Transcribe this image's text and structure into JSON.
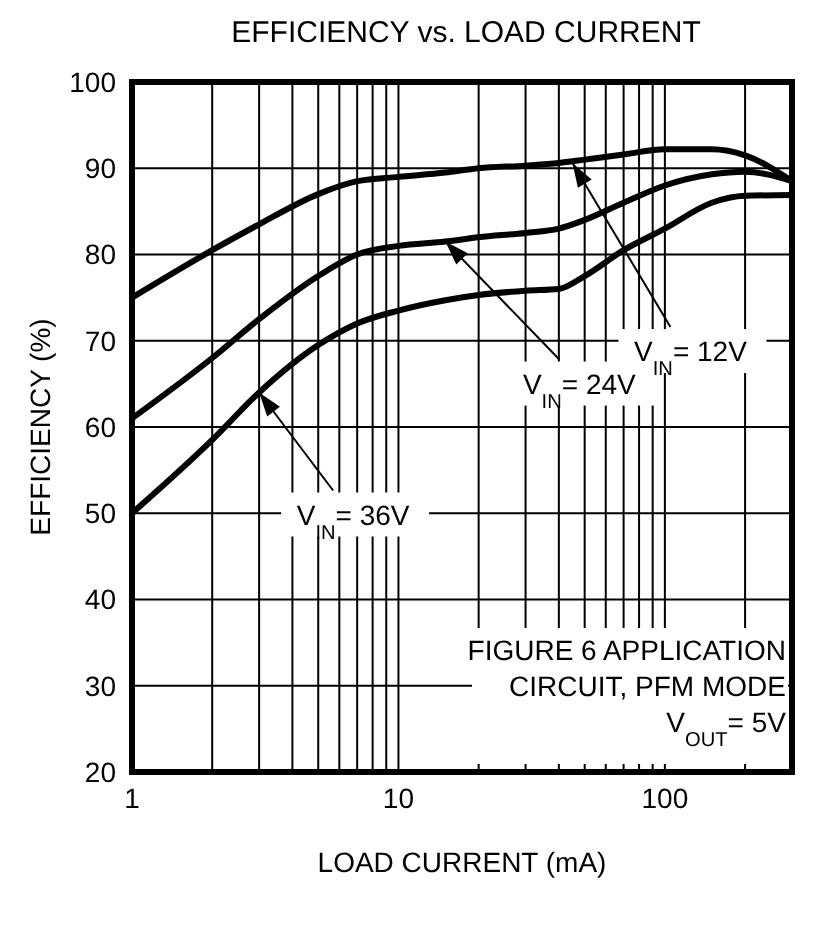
{
  "chart_data": {
    "type": "line",
    "title": "EFFICIENCY vs. LOAD CURRENT",
    "xlabel": "LOAD CURRENT (mA)",
    "ylabel": "EFFICIENCY (%)",
    "x": [
      1,
      2,
      3,
      5,
      7,
      10,
      15,
      20,
      30,
      40,
      50,
      70,
      100,
      150,
      200,
      300
    ],
    "series": [
      {
        "color": "#000000",
        "values": [
          75,
          80.5,
          83.5,
          87,
          88.5,
          89,
          89.5,
          90,
          90.3,
          90.6,
          91,
          91.6,
          92.2,
          92.2,
          91.5,
          88.5
        ]
      },
      {
        "color": "#000000",
        "values": [
          61,
          68,
          72.5,
          77.5,
          80,
          81,
          81.5,
          82,
          82.5,
          83,
          84,
          86,
          88,
          89.3,
          89.6,
          88.5
        ]
      },
      {
        "color": "#000000",
        "values": [
          50,
          58.5,
          64,
          69.5,
          72,
          73.5,
          74.7,
          75.3,
          75.8,
          76,
          77.5,
          80.5,
          83,
          86,
          86.8,
          86.9
        ]
      }
    ],
    "log": "x",
    "xlim": [
      1,
      300
    ],
    "xticks": [
      1,
      {
        "value": 2,
        "label": null
      },
      {
        "value": 3,
        "label": null
      },
      {
        "value": 4,
        "label": null
      },
      {
        "value": 5,
        "label": null
      },
      {
        "value": 6,
        "label": null
      },
      {
        "value": 7,
        "label": null
      },
      {
        "value": 8,
        "label": null
      },
      {
        "value": 9,
        "label": null
      },
      10,
      {
        "value": 20,
        "label": null
      },
      {
        "value": 30,
        "label": null
      },
      {
        "value": 40,
        "label": null
      },
      {
        "value": 50,
        "label": null
      },
      {
        "value": 60,
        "label": null
      },
      {
        "value": 70,
        "label": null
      },
      {
        "value": 80,
        "label": null
      },
      {
        "value": 90,
        "label": null
      },
      100,
      {
        "value": 200,
        "label": null
      }
    ],
    "ylim": [
      20,
      100
    ],
    "yticks": [
      20,
      30,
      40,
      50,
      60,
      70,
      80,
      90,
      100
    ],
    "grid": true,
    "legend": false,
    "marker": "none",
    "line_style": "solid",
    "annotations": [
      {
        "text": "V$_{IN}$= 36V",
        "x": 3,
        "y": 64
      },
      {
        "text": "V$_{IN}$= 24V",
        "x": 15,
        "y": 81.5
      },
      {
        "text": "V$_{IN}$= 12V",
        "x": 45,
        "y": 90.6
      },
      "FIGURE 6 APPLICATION",
      "CIRCUIT, PFM MODE",
      "V$_{OUT}$= 5V"
    ]
  }
}
